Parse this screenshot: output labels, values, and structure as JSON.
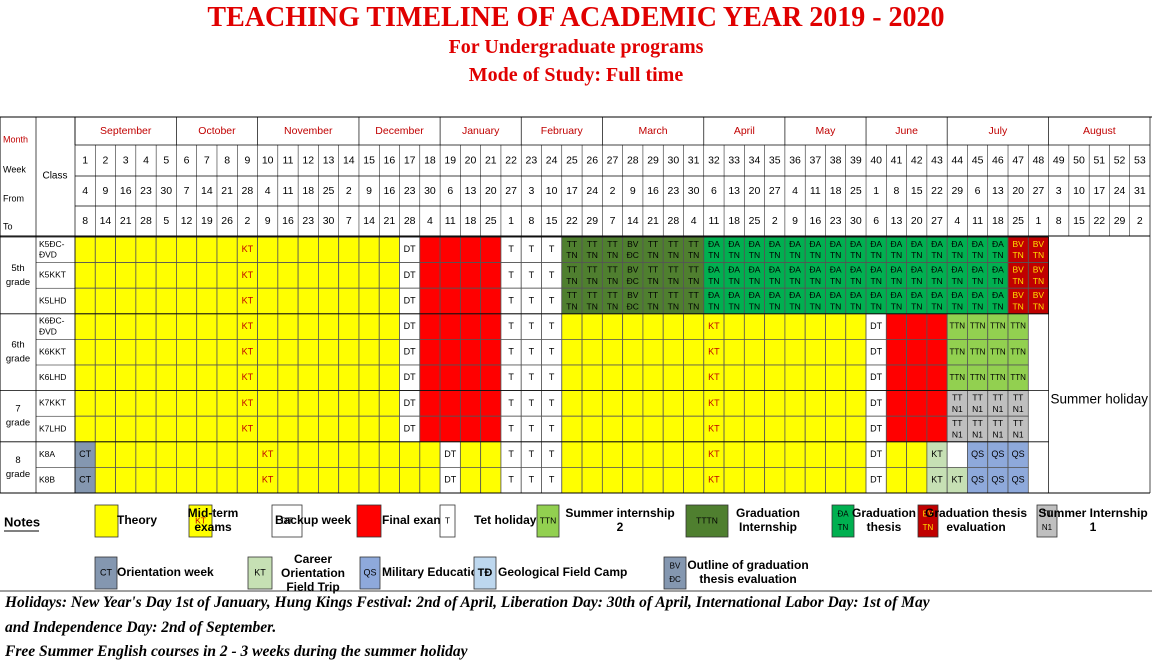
{
  "title": "TEACHING TIMELINE OF ACADEMIC YEAR 2019 - 2020",
  "subtitle1": "For Undergraduate  programs",
  "subtitle2": "Mode of Study: Full time",
  "row_labels": {
    "month": "Month",
    "week": "Week",
    "from": "From",
    "to": "To",
    "class": "Class"
  },
  "months": [
    {
      "name": "September",
      "weeks": 5
    },
    {
      "name": "October",
      "weeks": 4
    },
    {
      "name": "November",
      "weeks": 5
    },
    {
      "name": "December",
      "weeks": 4
    },
    {
      "name": "January",
      "weeks": 4
    },
    {
      "name": "February",
      "weeks": 4
    },
    {
      "name": "March",
      "weeks": 5
    },
    {
      "name": "April",
      "weeks": 4
    },
    {
      "name": "May",
      "weeks": 4
    },
    {
      "name": "June",
      "weeks": 4
    },
    {
      "name": "July",
      "weeks": 5
    },
    {
      "name": "August",
      "weeks": 5
    }
  ],
  "week_numbers": [
    "1",
    "2",
    "3",
    "4",
    "5",
    "6",
    "7",
    "8",
    "9",
    "10",
    "11",
    "12",
    "13",
    "14",
    "15",
    "16",
    "17",
    "18",
    "19",
    "20",
    "21",
    "22",
    "23",
    "24",
    "25",
    "26",
    "27",
    "28",
    "29",
    "30",
    "31",
    "32",
    "33",
    "34",
    "35",
    "36",
    "37",
    "38",
    "39",
    "40",
    "41",
    "42",
    "43",
    "44",
    "45",
    "46",
    "47",
    "48",
    "49",
    "50",
    "51",
    "52",
    "53"
  ],
  "from_dates": [
    "4",
    "9",
    "16",
    "23",
    "30",
    "7",
    "14",
    "21",
    "28",
    "4",
    "11",
    "18",
    "25",
    "2",
    "9",
    "16",
    "23",
    "30",
    "6",
    "13",
    "20",
    "27",
    "3",
    "10",
    "17",
    "24",
    "2",
    "9",
    "16",
    "23",
    "30",
    "6",
    "13",
    "20",
    "27",
    "4",
    "11",
    "18",
    "25",
    "1",
    "8",
    "15",
    "22",
    "29",
    "6",
    "13",
    "20",
    "27",
    "3",
    "10",
    "17",
    "24",
    "31"
  ],
  "to_dates": [
    "8",
    "14",
    "21",
    "28",
    "5",
    "12",
    "19",
    "26",
    "2",
    "9",
    "16",
    "23",
    "30",
    "7",
    "14",
    "21",
    "28",
    "4",
    "11",
    "18",
    "25",
    "1",
    "8",
    "15",
    "22",
    "29",
    "7",
    "14",
    "21",
    "28",
    "4",
    "11",
    "18",
    "25",
    "2",
    "9",
    "16",
    "23",
    "30",
    "6",
    "13",
    "20",
    "27",
    "4",
    "11",
    "18",
    "25",
    "1",
    "8",
    "15",
    "22",
    "29",
    "2"
  ],
  "grades": [
    {
      "label": "5th grade",
      "classes": [
        "K5ĐC-ĐVD",
        "K5KKT",
        "K5LHD"
      ]
    },
    {
      "label": "6th grade",
      "classes": [
        "K6ĐC-ĐVD",
        "K6KKT",
        "K6LHD"
      ]
    },
    {
      "label": "7 grade",
      "classes": [
        "K7KKT",
        "K7LHD"
      ]
    },
    {
      "label": "8 grade",
      "classes": [
        "K8A",
        "K8B"
      ]
    }
  ],
  "summer_holiday": "Summer holiday",
  "notes_label": "Notes",
  "legend": [
    {
      "code": "",
      "color": "#ffff00",
      "text": "Theory"
    },
    {
      "code": "KT",
      "color": "#ffff00",
      "text": "Mid-term exams"
    },
    {
      "code": "DT",
      "color": "#ffffff",
      "text": "Backup week"
    },
    {
      "code": "",
      "color": "#ff0000",
      "text": "Final exan"
    },
    {
      "code": "T",
      "color": "#ffffff",
      "text": "Tet holiday"
    },
    {
      "code": "TTN",
      "color": "#92d050",
      "text": "Summer internship 2"
    },
    {
      "code": "TTTN",
      "color": "#4f7f2f",
      "text": "Graduation Internship"
    },
    {
      "code": "ĐA TN",
      "color": "#00b050",
      "text": "Graduation thesis"
    },
    {
      "code": "BV TN",
      "color": "#c00000",
      "text": "Graduation thesis evaluation"
    },
    {
      "code": "TT N1",
      "color": "#bfbfbf",
      "text": "Summer Internship 1"
    },
    {
      "code": "CT",
      "color": "#8497b0",
      "text": "Orientation week"
    },
    {
      "code": "KT",
      "color": "#c6e0b4",
      "text": "Career Orientation Field Trip"
    },
    {
      "code": "QS",
      "color": "#8ea9db",
      "text": "Military Education"
    },
    {
      "code": "TĐ",
      "color": "#bdd7ee",
      "text": "Geological Field Camp"
    },
    {
      "code": "BV ĐC",
      "color": "#8497b0",
      "text": "Outline of graduation thesis evaluation"
    }
  ],
  "cell_codes": {
    "kt": "KT",
    "dt": "DT",
    "tet": "T",
    "ct": "CT",
    "qs": "QS",
    "ttn": "TTN",
    "tt": "TT",
    "tn": "TN",
    "bv": "BV",
    "dc": "ĐC",
    "da": "ĐA",
    "n1": "N1"
  },
  "colors": {
    "yellow": "#ffff00",
    "red": "#ff0000",
    "dark_green": "#4f7f2f",
    "green": "#00b050",
    "dark_red": "#c00000",
    "light_green": "#92d050",
    "gray": "#bfbfbf",
    "slate": "#8497b0",
    "pale_green": "#c6e0b4",
    "blue": "#8ea9db",
    "pale_blue": "#bdd7ee",
    "title_red": "#e00000",
    "month_red": "#c00000"
  },
  "footer": [
    "Holidays: New Year's Day 1st of January, Hung Kings Festival: 2nd of April, Liberation Day: 30th of April, International Labor Day: 1st of May",
    "and Independence Day: 2nd of September.",
    "Free Summer English courses in 2 - 3 weeks during the summer holiday"
  ]
}
